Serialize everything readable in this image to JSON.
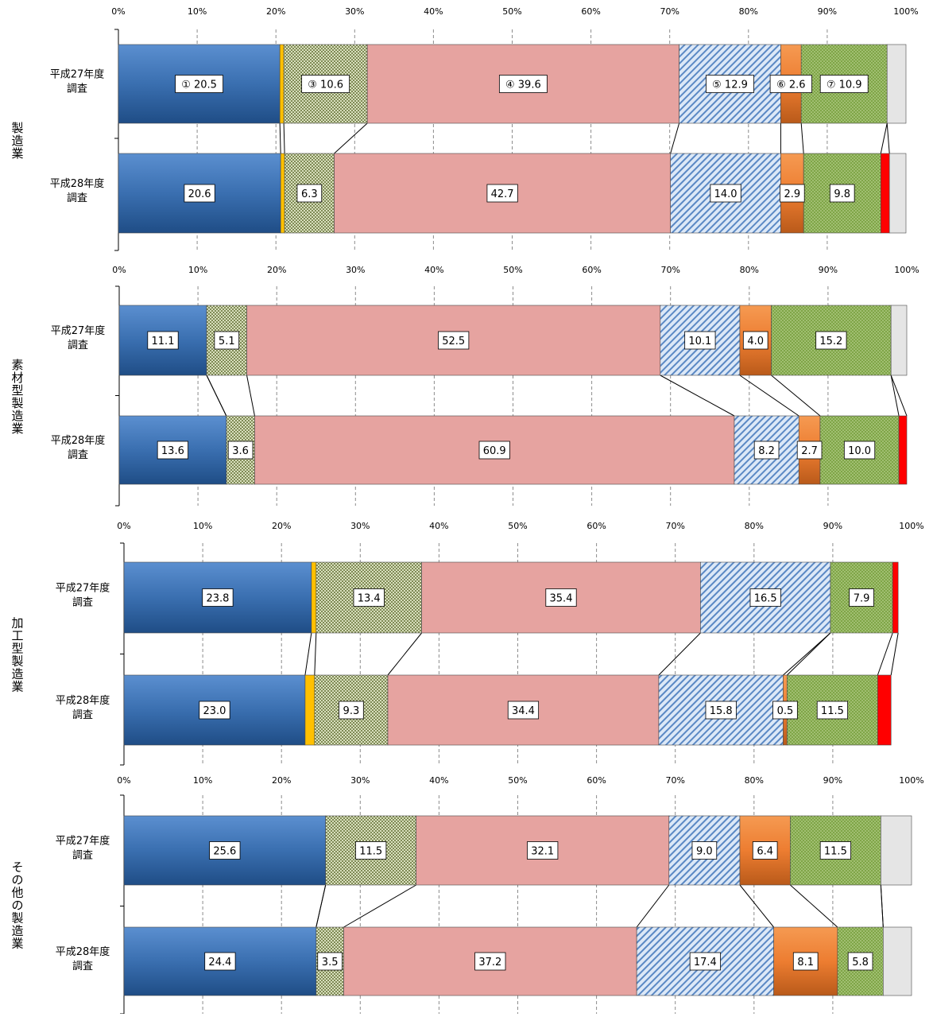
{
  "chart_data": [
    {
      "type": "bar",
      "orientation": "horizontal",
      "stacked": true,
      "percent_axis": true,
      "title": "製造業",
      "xlim": [
        0,
        100
      ],
      "ticks": [
        "0%",
        "10%",
        "20%",
        "30%",
        "40%",
        "50%",
        "60%",
        "70%",
        "80%",
        "90%",
        "100%"
      ],
      "categories": [
        "平成27年度\n調査",
        "平成28年度\n調査"
      ],
      "series": [
        {
          "key": "s1",
          "values": [
            20.5,
            20.6
          ],
          "labels": [
            "① 20.5",
            "20.6"
          ]
        },
        {
          "key": "s2",
          "values": [
            0.5,
            0.5
          ],
          "labels": [
            "",
            ""
          ]
        },
        {
          "key": "s3",
          "values": [
            10.6,
            6.3
          ],
          "labels": [
            "③ 10.6",
            "6.3"
          ]
        },
        {
          "key": "s4",
          "values": [
            39.6,
            42.7
          ],
          "labels": [
            "④ 39.6",
            "42.7"
          ]
        },
        {
          "key": "s5",
          "values": [
            12.9,
            14.0
          ],
          "labels": [
            "⑤ 12.9",
            "14.0"
          ]
        },
        {
          "key": "s6",
          "values": [
            2.6,
            2.9
          ],
          "labels": [
            "⑥ 2.6",
            "2.9"
          ]
        },
        {
          "key": "s7",
          "values": [
            10.9,
            9.8
          ],
          "labels": [
            "⑦ 10.9",
            "9.8"
          ]
        },
        {
          "key": "s8",
          "values": [
            0.0,
            1.1
          ],
          "labels": [
            "",
            ""
          ]
        },
        {
          "key": "s9",
          "values": [
            2.4,
            2.1
          ],
          "labels": [
            "",
            ""
          ]
        }
      ]
    },
    {
      "type": "bar",
      "orientation": "horizontal",
      "stacked": true,
      "percent_axis": true,
      "title": "素材型製造業",
      "xlim": [
        0,
        100
      ],
      "ticks": [
        "0%",
        "10%",
        "20%",
        "30%",
        "40%",
        "50%",
        "60%",
        "70%",
        "80%",
        "90%",
        "100%"
      ],
      "categories": [
        "平成27年度\n調査",
        "平成28年度\n調査"
      ],
      "series": [
        {
          "key": "s1",
          "values": [
            11.1,
            13.6
          ],
          "labels": [
            "11.1",
            "13.6"
          ]
        },
        {
          "key": "s2",
          "values": [
            0.0,
            0.0
          ],
          "labels": [
            "",
            ""
          ]
        },
        {
          "key": "s3",
          "values": [
            5.1,
            3.6
          ],
          "labels": [
            "5.1",
            "3.6"
          ]
        },
        {
          "key": "s4",
          "values": [
            52.5,
            60.9
          ],
          "labels": [
            "52.5",
            "60.9"
          ]
        },
        {
          "key": "s5",
          "values": [
            10.1,
            8.2
          ],
          "labels": [
            "10.1",
            "8.2"
          ]
        },
        {
          "key": "s6",
          "values": [
            4.0,
            2.7
          ],
          "labels": [
            "4.0",
            "2.7"
          ]
        },
        {
          "key": "s7",
          "values": [
            15.2,
            10.0
          ],
          "labels": [
            "15.2",
            "10.0"
          ]
        },
        {
          "key": "s8",
          "values": [
            0.0,
            1.0
          ],
          "labels": [
            "",
            ""
          ]
        },
        {
          "key": "s9",
          "values": [
            2.0,
            0.0
          ],
          "labels": [
            "",
            ""
          ]
        }
      ]
    },
    {
      "type": "bar",
      "orientation": "horizontal",
      "stacked": true,
      "percent_axis": true,
      "title": "加工型製造業",
      "xlim": [
        0,
        100
      ],
      "ticks": [
        "0%",
        "10%",
        "20%",
        "30%",
        "40%",
        "50%",
        "60%",
        "70%",
        "80%",
        "90%",
        "100%"
      ],
      "categories": [
        "平成27年度\n調査",
        "平成28年度\n調査"
      ],
      "series": [
        {
          "key": "s1",
          "values": [
            23.8,
            23.0
          ],
          "labels": [
            "23.8",
            "23.0"
          ]
        },
        {
          "key": "s2",
          "values": [
            0.6,
            1.2
          ],
          "labels": [
            "",
            ""
          ]
        },
        {
          "key": "s3",
          "values": [
            13.4,
            9.3
          ],
          "labels": [
            "13.4",
            "9.3"
          ]
        },
        {
          "key": "s4",
          "values": [
            35.4,
            34.4
          ],
          "labels": [
            "35.4",
            "34.4"
          ]
        },
        {
          "key": "s5",
          "values": [
            16.5,
            15.8
          ],
          "labels": [
            "16.5",
            "15.8"
          ]
        },
        {
          "key": "s6",
          "values": [
            0.0,
            0.5
          ],
          "labels": [
            "",
            "0.5"
          ]
        },
        {
          "key": "s7",
          "values": [
            7.9,
            11.5
          ],
          "labels": [
            "7.9",
            "11.5"
          ]
        },
        {
          "key": "s8",
          "values": [
            0.7,
            1.7
          ],
          "labels": [
            "",
            ""
          ]
        },
        {
          "key": "s9",
          "values": [
            0.0,
            0.0
          ],
          "labels": [
            "",
            ""
          ]
        }
      ]
    },
    {
      "type": "bar",
      "orientation": "horizontal",
      "stacked": true,
      "percent_axis": true,
      "title": "その他の製造業",
      "xlim": [
        0,
        100
      ],
      "ticks": [
        "0%",
        "10%",
        "20%",
        "30%",
        "40%",
        "50%",
        "60%",
        "70%",
        "80%",
        "90%",
        "100%"
      ],
      "categories": [
        "平成27年度\n調査",
        "平成28年度\n調査"
      ],
      "series": [
        {
          "key": "s1",
          "values": [
            25.6,
            24.4
          ],
          "labels": [
            "25.6",
            "24.4"
          ]
        },
        {
          "key": "s2",
          "values": [
            0.0,
            0.0
          ],
          "labels": [
            "",
            ""
          ]
        },
        {
          "key": "s3",
          "values": [
            11.5,
            3.5
          ],
          "labels": [
            "11.5",
            "3.5"
          ]
        },
        {
          "key": "s4",
          "values": [
            32.1,
            37.2
          ],
          "labels": [
            "32.1",
            "37.2"
          ]
        },
        {
          "key": "s5",
          "values": [
            9.0,
            17.4
          ],
          "labels": [
            "9.0",
            "17.4"
          ]
        },
        {
          "key": "s6",
          "values": [
            6.4,
            8.1
          ],
          "labels": [
            "6.4",
            "8.1"
          ]
        },
        {
          "key": "s7",
          "values": [
            11.5,
            5.8
          ],
          "labels": [
            "11.5",
            "5.8"
          ]
        },
        {
          "key": "s8",
          "values": [
            0.0,
            0.0
          ],
          "labels": [
            "",
            ""
          ]
        },
        {
          "key": "s9",
          "values": [
            3.9,
            3.6
          ],
          "labels": [
            "",
            ""
          ]
        }
      ]
    }
  ],
  "colors": {
    "s1": "#3a6fb0",
    "s2": "#ffc000",
    "s3": "#c8d1a8",
    "s4": "#e6a3a0",
    "s5": "#b9cde9",
    "s6": "#ed7d31",
    "s7": "#8bad56",
    "s8": "#ff0000",
    "s9": "#e5e5e5"
  }
}
